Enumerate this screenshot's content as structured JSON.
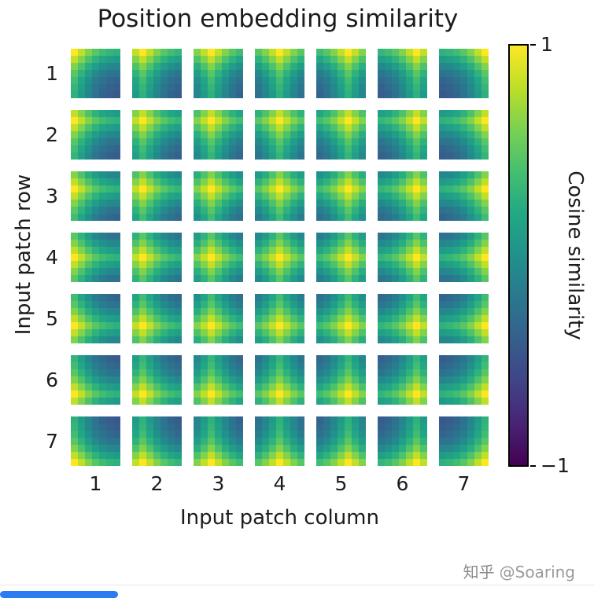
{
  "chart_data": {
    "type": "heatmap",
    "title": "Position embedding similarity",
    "xlabel": "Input patch column",
    "ylabel": "Input patch row",
    "x_tick_labels": [
      "1",
      "2",
      "3",
      "4",
      "5",
      "6",
      "7"
    ],
    "y_tick_labels": [
      "1",
      "2",
      "3",
      "4",
      "5",
      "6",
      "7"
    ],
    "grid": {
      "rows": 7,
      "cols": 7,
      "submap_rows": 7,
      "submap_cols": 7
    },
    "colorbar": {
      "label": "Cosine similarity",
      "top_tick": "1",
      "bottom_tick": "−1",
      "vmin": -1,
      "vmax": 1,
      "colormap": "viridis"
    },
    "similarity_profile_by_distance": [
      1.0,
      0.62,
      0.25,
      -0.05,
      -0.25,
      -0.38,
      -0.45
    ],
    "value_rule": "cosine similarity of submap (r,c) at cell (i,j) = (profile[|i-r|] + profile[|j-c|]) / 2; each submap shows a bright cross through its own (row, column) position, brightest (1.0, yellow) at the position itself",
    "viridis_rgb_anchors": [
      [
        68,
        1,
        84
      ],
      [
        72,
        36,
        117
      ],
      [
        65,
        68,
        135
      ],
      [
        53,
        95,
        141
      ],
      [
        42,
        120,
        142
      ],
      [
        33,
        145,
        140
      ],
      [
        34,
        168,
        132
      ],
      [
        68,
        191,
        112
      ],
      [
        122,
        209,
        81
      ],
      [
        189,
        223,
        38
      ],
      [
        253,
        231,
        37
      ]
    ]
  },
  "watermark": {
    "site": "知乎",
    "handle": "@Soaring",
    "color": "#9a9a9a"
  },
  "footer": {
    "progress_color": "#2b7bf3",
    "track_color": "#e7e7e7"
  }
}
